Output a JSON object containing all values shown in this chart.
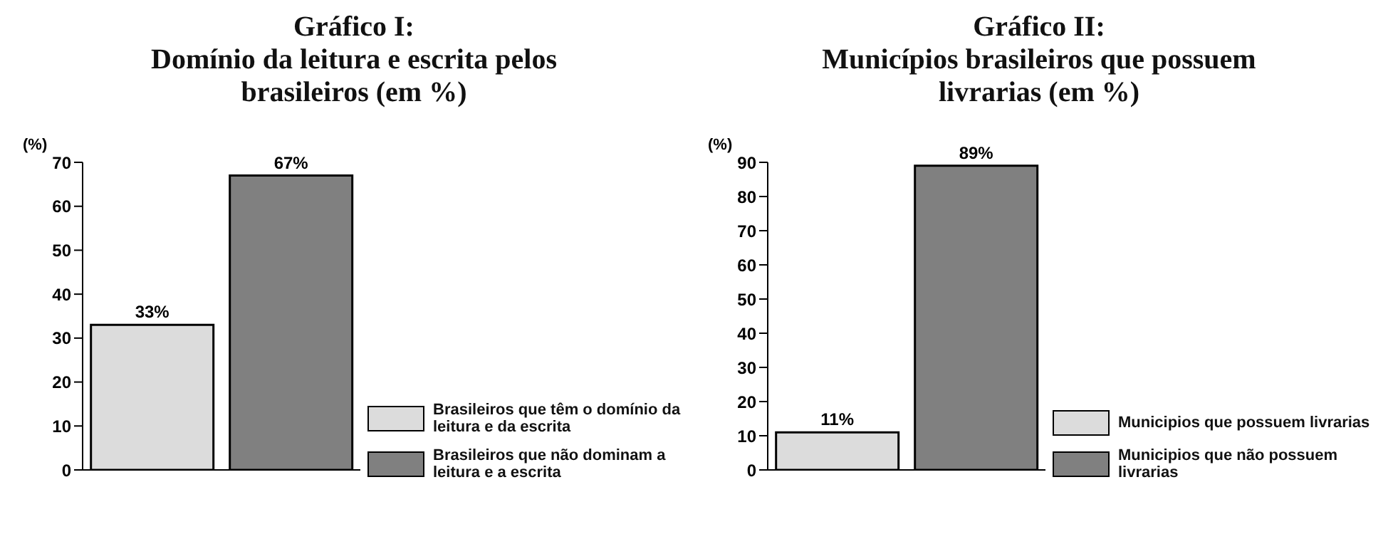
{
  "chart_data": [
    {
      "type": "bar",
      "title": "Gráfico I:",
      "subtitle": "Domínio da leitura e escrita pelos brasileiros (em %)",
      "ylabel": "(%)",
      "categories": [
        null,
        null
      ],
      "ylim": [
        0,
        70
      ],
      "yticks": [
        0,
        10,
        20,
        30,
        40,
        50,
        60,
        70
      ],
      "legend": "bottom right",
      "series": [
        {
          "name": "Brasileiros que têm o domínio da leitura e da escrita",
          "color": "#dcdcdc",
          "values": [
            33,
            null
          ],
          "value_labels": [
            "33%",
            null
          ]
        },
        {
          "name": "Brasileiros que não dominam a leitura e a escrita",
          "color": "#808080",
          "values": [
            null,
            67
          ],
          "value_labels": [
            null,
            "67%"
          ]
        }
      ]
    },
    {
      "type": "bar",
      "title": "Gráfico II:",
      "subtitle": "Municípios brasileiros que possuem livrarias (em %)",
      "ylabel": "(%)",
      "categories": [
        null,
        null
      ],
      "ylim": [
        0,
        90
      ],
      "yticks": [
        0,
        10,
        20,
        30,
        40,
        50,
        60,
        70,
        80,
        90
      ],
      "legend": "bottom right",
      "series": [
        {
          "name": "Municipios que possuem livrarias",
          "color": "#dcdcdc",
          "values": [
            11,
            null
          ],
          "value_labels": [
            "11%",
            null
          ]
        },
        {
          "name": "Municipios que não possuem livrarias",
          "color": "#808080",
          "values": [
            null,
            89
          ],
          "value_labels": [
            null,
            "89%"
          ]
        }
      ]
    }
  ]
}
